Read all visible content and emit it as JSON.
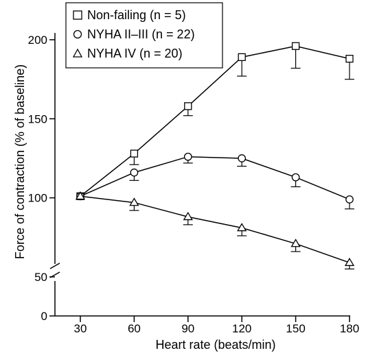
{
  "chart_data": {
    "type": "line",
    "title": "",
    "xlabel": "Heart rate (beats/min)",
    "ylabel": "Force of contraction (% of baseline)",
    "x": [
      30,
      60,
      90,
      120,
      150,
      180
    ],
    "x_ticks": [
      "30",
      "60",
      "90",
      "120",
      "150",
      "180"
    ],
    "y_ticks": [
      "0",
      "50",
      "100",
      "150",
      "200"
    ],
    "xlim": [
      15,
      190
    ],
    "ylim": [
      0,
      210
    ],
    "y_axis_break": "between 0 and 50",
    "grid": false,
    "legend_position": "top-left",
    "series": [
      {
        "name": "Non-failing (n = 5)",
        "marker": "square",
        "values": [
          101,
          128,
          158,
          189,
          196,
          188
        ],
        "error": [
          0,
          7,
          6,
          12,
          14,
          13
        ],
        "error_direction": [
          "none",
          "down",
          "down",
          "down",
          "down",
          "down"
        ]
      },
      {
        "name": "NYHA II–III (n = 22)",
        "marker": "circle",
        "values": [
          101,
          116,
          126,
          125,
          113,
          99
        ],
        "error": [
          0,
          5,
          4,
          5,
          6,
          6
        ],
        "error_direction": [
          "none",
          "down",
          "down",
          "down",
          "down",
          "down"
        ]
      },
      {
        "name": "NYHA IV (n = 20)",
        "marker": "triangle",
        "values": [
          101,
          97,
          88,
          81,
          71,
          59
        ],
        "error": [
          0,
          5,
          5,
          5,
          5,
          4
        ],
        "error_direction": [
          "none",
          "down",
          "down",
          "down",
          "down",
          "down"
        ]
      }
    ]
  }
}
